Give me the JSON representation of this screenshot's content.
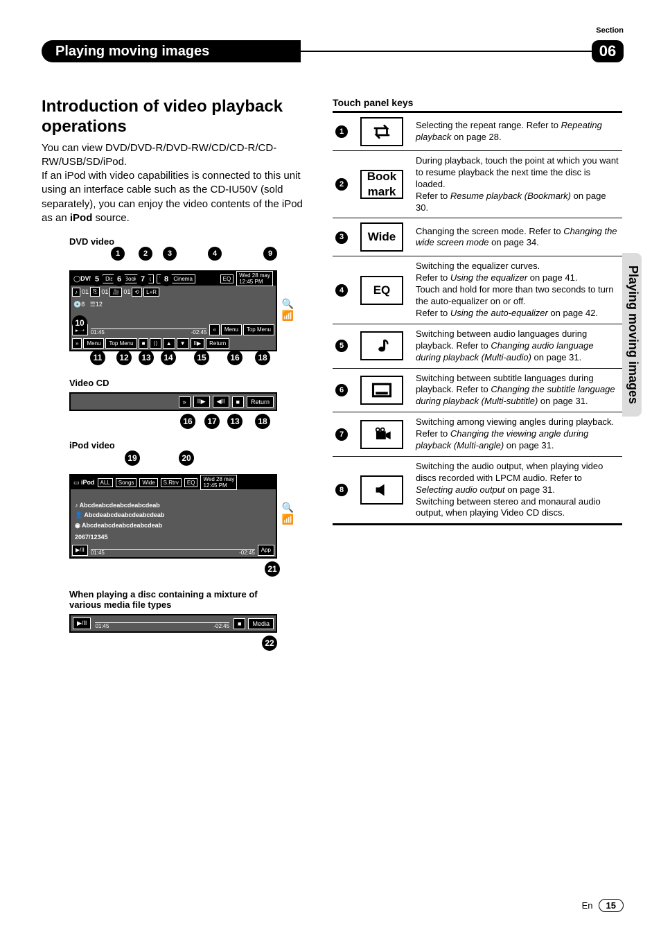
{
  "section_label": "Section",
  "chapter": {
    "title": "Playing moving images",
    "number": "06"
  },
  "sidetab": "Playing moving images",
  "intro": {
    "heading": "Introduction of video playback operations",
    "p1a": "You can view DVD/DVD-R/DVD-RW/CD/CD-R/CD-RW/USB/SD/iPod.",
    "p1b": "If an iPod with video capabilities is connected to this unit using an interface cable such as the CD-IU50V (sold separately), you can enjoy the video contents of the iPod as an ",
    "p1bold": "iPod",
    "p1c": " source."
  },
  "dvd": {
    "label": "DVD video",
    "top_callouts": [
      1,
      2,
      3,
      4,
      9
    ],
    "topbar": {
      "src": "DVD-V",
      "disc": "Disc",
      "book": "Book mark",
      "wide": "Wide Cinema",
      "eq": "EQ",
      "date": "Wed 28 may",
      "time": "12:45 PM"
    },
    "row2": [
      "♪",
      "01",
      "⎘",
      "01",
      "🎥",
      "01",
      "⟲",
      "L+R"
    ],
    "mid_callouts": [
      5,
      6,
      7,
      8
    ],
    "disc_idx": "8",
    "trk": "12",
    "timebar": {
      "play": "▶/II",
      "t1": "01:45",
      "t2": "-02:45",
      "rew": "«",
      "menu": "Menu",
      "top": "Top Menu"
    },
    "c10": "10",
    "btnrow": [
      "»",
      "Menu",
      "Top Menu",
      "■",
      "⟨⟩",
      "▲",
      "▼",
      "II▶",
      "Return"
    ],
    "bottom_callouts": [
      11,
      12,
      13,
      14,
      15,
      16,
      18
    ]
  },
  "vcd": {
    "label": "Video CD",
    "btns": [
      "»",
      "II▶",
      "◀II",
      "■",
      "Return"
    ],
    "callouts": [
      16,
      17,
      13,
      18
    ]
  },
  "ipod": {
    "label": "iPod video",
    "top_callouts": [
      19,
      20
    ],
    "topbar": {
      "src": "iPod",
      "rep": "ALL",
      "songs": "Songs",
      "wide": "Wide",
      "srtrv": "S.Rtrv",
      "eq": "EQ",
      "date": "Wed 28 may",
      "time": "12:45 PM"
    },
    "lines": [
      "Abcdeabcdeabcdeabcdeab",
      "Abcdeabcdeabcdeabcdeab",
      "Abcdeabcdeabcdeabcdeab"
    ],
    "count": "2067/12345",
    "timebar": {
      "play": "▶/II",
      "t1": "01:45",
      "t2": "-02:45",
      "app": "App"
    },
    "c21": "21"
  },
  "mixture": {
    "label": "When playing a disc containing a mixture of various media file types",
    "bar": {
      "play": "▶/II",
      "t1": "01:45",
      "t2": "-02:45",
      "stop": "■",
      "media": "Media"
    },
    "c22": "22"
  },
  "touch": {
    "title": "Touch panel keys",
    "rows": [
      {
        "n": "1",
        "icon_type": "repeat",
        "desc_a": "Selecting the repeat range. Refer to ",
        "desc_i": "Repeating playback",
        "desc_b": " on page 28."
      },
      {
        "n": "2",
        "icon_text": "Book mark",
        "desc_a": "During playback, touch the point at which you want to resume playback the next time the disc is loaded.\nRefer to ",
        "desc_i": "Resume playback (Bookmark)",
        "desc_b": " on page 30."
      },
      {
        "n": "3",
        "icon_text": "Wide",
        "desc_a": "Changing the screen mode. Refer to ",
        "desc_i": "Changing the wide screen mode",
        "desc_b": " on page 34."
      },
      {
        "n": "4",
        "icon_text": "EQ",
        "desc_a": "Switching the equalizer curves.\nRefer to ",
        "desc_i": "Using the equalizer",
        "desc_b": " on page 41.\nTouch and hold for more than two seconds to turn the auto-equalizer on or off.\nRefer to ",
        "desc_i2": "Using the auto-equalizer",
        "desc_b2": " on page 42."
      },
      {
        "n": "5",
        "icon_type": "note",
        "desc_a": "Switching between audio languages during playback. Refer to ",
        "desc_i": "Changing audio language during playback (Multi-audio)",
        "desc_b": " on page 31."
      },
      {
        "n": "6",
        "icon_type": "subtitle",
        "desc_a": "Switching between subtitle languages during playback. Refer to ",
        "desc_i": "Changing the subtitle language during playback (Multi-subtitle)",
        "desc_b": " on page 31."
      },
      {
        "n": "7",
        "icon_type": "angle",
        "desc_a": "Switching among viewing angles during playback. Refer to ",
        "desc_i": "Changing the viewing angle during playback (Multi-angle)",
        "desc_b": " on page 31."
      },
      {
        "n": "8",
        "icon_type": "speaker",
        "desc_a": "Switching the audio output, when playing video discs recorded with LPCM audio. Refer to ",
        "desc_i": "Selecting audio output",
        "desc_b": " on page 31.\nSwitching between stereo and monaural audio output, when playing Video CD discs."
      }
    ]
  },
  "footer": {
    "lang": "En",
    "page": "15"
  },
  "colors": {
    "black": "#000000",
    "grey": "#595959",
    "light": "#dcdcdc",
    "white": "#ffffff"
  }
}
